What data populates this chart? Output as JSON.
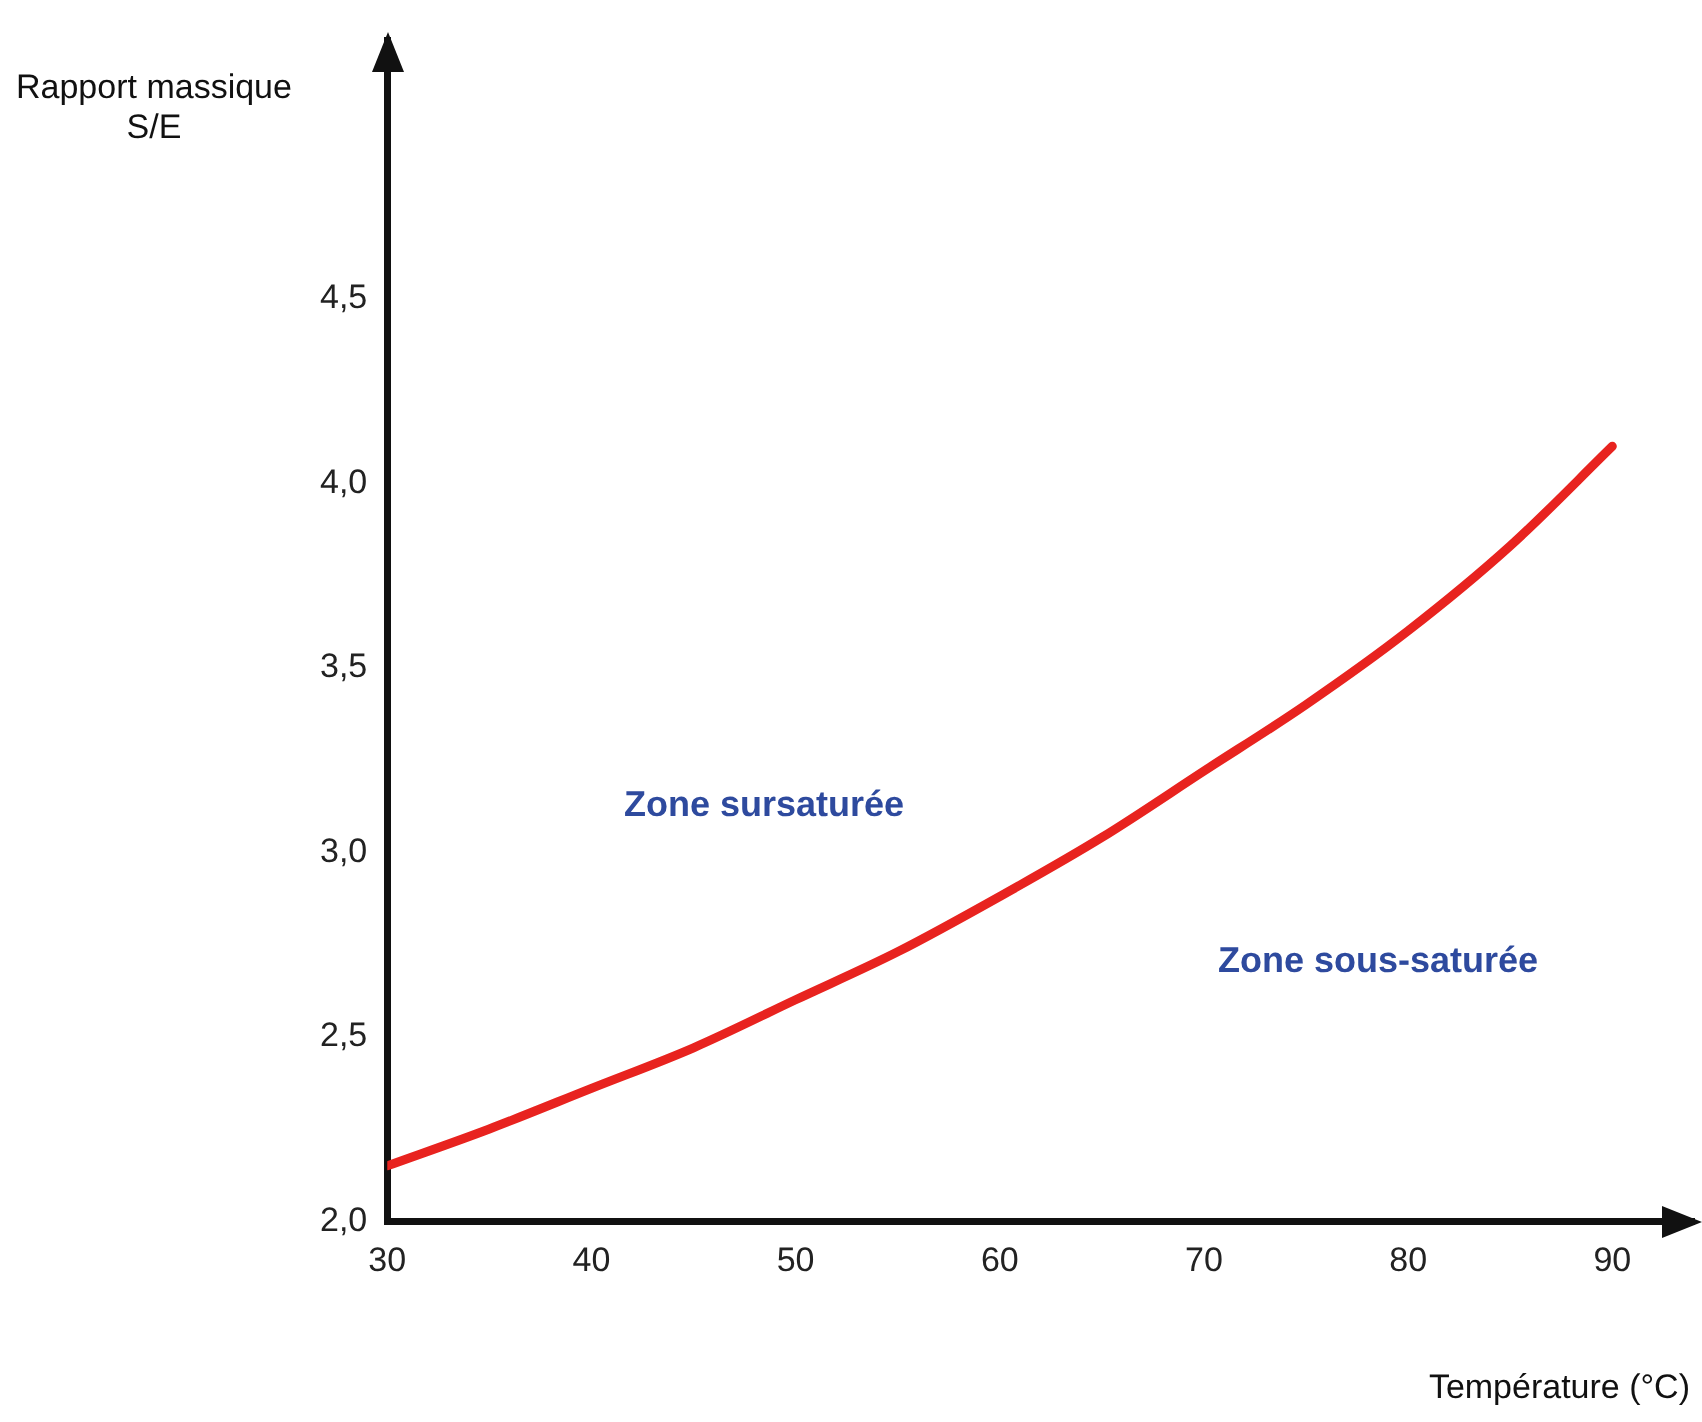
{
  "chart_data": {
    "type": "line",
    "xlabel": "Température (°C)",
    "ylabel": "Rapport massique\nS/E",
    "x": [
      30,
      35,
      40,
      45,
      50,
      55,
      60,
      65,
      70,
      75,
      80,
      85,
      90
    ],
    "series": [
      {
        "color": "#e8231f",
        "values": [
          2.15,
          2.25,
          2.36,
          2.47,
          2.6,
          2.73,
          2.88,
          3.04,
          3.22,
          3.4,
          3.6,
          3.83,
          4.1
        ]
      }
    ],
    "xlim": [
      30,
      94
    ],
    "ylim": [
      2,
      5.2
    ],
    "xticks": [
      30,
      40,
      50,
      60,
      70,
      80,
      90
    ],
    "yticks": [
      {
        "value": 2,
        "label": "2,0"
      },
      {
        "value": 2.5,
        "label": "2,5"
      },
      {
        "value": 3,
        "label": "3,0"
      },
      {
        "value": 3.5,
        "label": "3,5"
      },
      {
        "value": 4,
        "label": "4,0"
      },
      {
        "value": 4.5,
        "label": "4,5"
      }
    ],
    "annotations": [
      "Zone sursaturée",
      "Zone sous-saturée"
    ],
    "grid": false,
    "legend": false,
    "marker": "none",
    "line_style": "solid"
  }
}
